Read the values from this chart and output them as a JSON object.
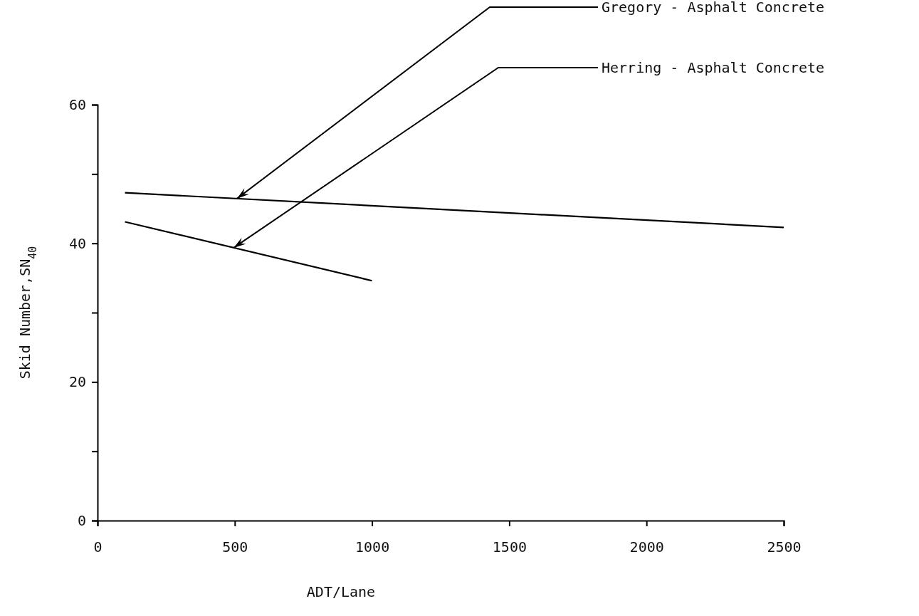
{
  "chart_data": {
    "type": "line",
    "xlabel": "ADT/Lane",
    "ylabel": "Skid Number,SN$_{40}$",
    "xlim": [
      0,
      2500
    ],
    "ylim": [
      0,
      60
    ],
    "xticks": [
      0,
      500,
      1000,
      1500,
      2000,
      2500
    ],
    "yticks": [
      0,
      {
        "value": 10,
        "label": null
      },
      20,
      {
        "value": 30,
        "label": null
      },
      40,
      {
        "value": 50,
        "label": null
      },
      60
    ],
    "grid": false,
    "legend": false,
    "marker": "none",
    "line_style": "solid",
    "series": [
      {
        "name": "Gregory - Asphalt Concrete",
        "color": "#000000",
        "x": [
          100,
          2500
        ],
        "values": [
          47.3,
          42.3
        ]
      },
      {
        "name": "Herring - Asphalt Concrete",
        "color": "#000000",
        "x": [
          100,
          1000
        ],
        "values": [
          43.1,
          34.6
        ]
      }
    ]
  }
}
